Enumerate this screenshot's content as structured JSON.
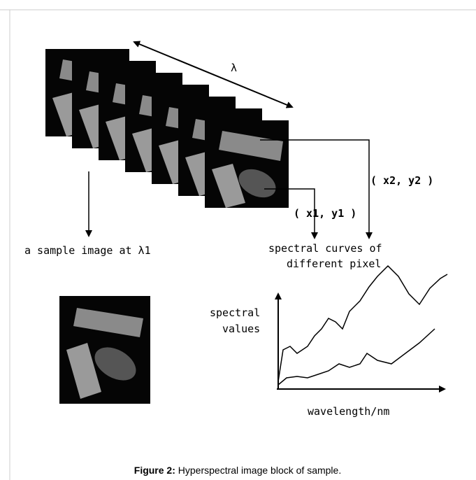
{
  "diagram": {
    "stack_axis_label": "λ",
    "pixel_2_label": "( x2, y2 )",
    "pixel_1_label": "( x1, y1 )",
    "sample_image_label": "a sample image at λ1",
    "curves_label": [
      "spectral curves of",
      "different pixel"
    ],
    "y_axis_label": [
      "spectral",
      "values"
    ],
    "x_axis_label": "wavelength/nm"
  },
  "caption": {
    "label": "Figure 2:",
    "text": "Hyperspectral image block of sample."
  }
}
